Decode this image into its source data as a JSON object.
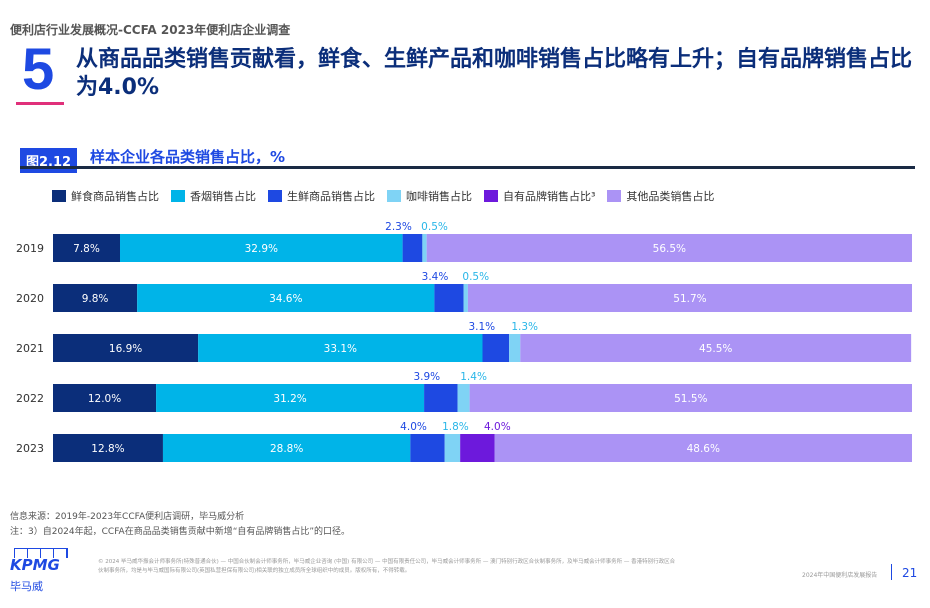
{
  "header": {
    "breadcrumb": "便利店行业发展概况-CCFA 2023年便利店企业调查",
    "section_number": "5",
    "headline": "从商品品类销售贡献看，鲜食、生鲜产品和咖啡销售占比略有上升；自有品牌销售占比为4.0%"
  },
  "figure": {
    "tag": "图2.12",
    "title": "样本企业各品类销售占比，%"
  },
  "chart_data": {
    "type": "bar",
    "orientation": "horizontal",
    "stacked": true,
    "xlim": [
      0,
      100
    ],
    "legend": "top",
    "categories": [
      "2019",
      "2020",
      "2021",
      "2022",
      "2023"
    ],
    "series": [
      {
        "name": "鲜食商品销售占比",
        "color": "#0b2e7a",
        "values": [
          7.8,
          9.8,
          16.9,
          12.0,
          12.8
        ],
        "labels": [
          "7.8%",
          "9.8%",
          "16.9%",
          "12.0%",
          "12.8%"
        ]
      },
      {
        "name": "香烟销售占比",
        "color": "#00b4e8",
        "values": [
          32.9,
          34.6,
          33.1,
          31.2,
          28.8
        ],
        "labels": [
          "32.9%",
          "34.6%",
          "33.1%",
          "31.2%",
          "28.8%"
        ]
      },
      {
        "name": "生鲜商品销售占比",
        "color": "#1e49e2",
        "values": [
          2.3,
          3.4,
          3.1,
          3.9,
          4.0
        ],
        "labels": [
          "2.3%",
          "3.4%",
          "3.1%",
          "3.9%",
          "4.0%"
        ]
      },
      {
        "name": "咖啡销售占比",
        "color": "#7fd3f5",
        "values": [
          0.5,
          0.5,
          1.3,
          1.4,
          1.8
        ],
        "labels": [
          "0.5%",
          "0.5%",
          "1.3%",
          "1.4%",
          "1.8%"
        ]
      },
      {
        "name": "自有品牌销售占比³",
        "color": "#6d19dc",
        "values": [
          0,
          0,
          0,
          0,
          4.0
        ],
        "labels": [
          "",
          "",
          "",
          "",
          "4.0%"
        ]
      },
      {
        "name": "其他品类销售占比",
        "color": "#ab93f5",
        "values": [
          56.5,
          51.7,
          45.5,
          51.5,
          48.6
        ],
        "labels": [
          "56.5%",
          "51.7%",
          "45.5%",
          "51.5%",
          "48.6%"
        ]
      }
    ]
  },
  "footer": {
    "source": "信息来源：2019年-2023年CCFA便利店调研，毕马威分析",
    "note": "注：3）自2024年起，CCFA在商品品类销售贡献中新增“自有品牌销售占比”的口径。",
    "logo": "KPMG",
    "logo_cn": "毕马威",
    "legal": "© 2024 毕马威华振会计师事务所(特殊普通合伙) — 中国合伙制会计师事务所，毕马威企业咨询 (中国) 有限公司 — 中国有限责任公司，毕马威会计师事务所 — 澳门特别行政区合伙制事务所，及毕马威会计师事务所 — 香港特别行政区合伙制事务所，均是与毕马威国际有限公司(英国私营担保有限公司)相关联的独立成员所全球组织中的成员。版权所有，不得转载。",
    "report": "2024年中国便利店发展报告",
    "page": "21"
  }
}
